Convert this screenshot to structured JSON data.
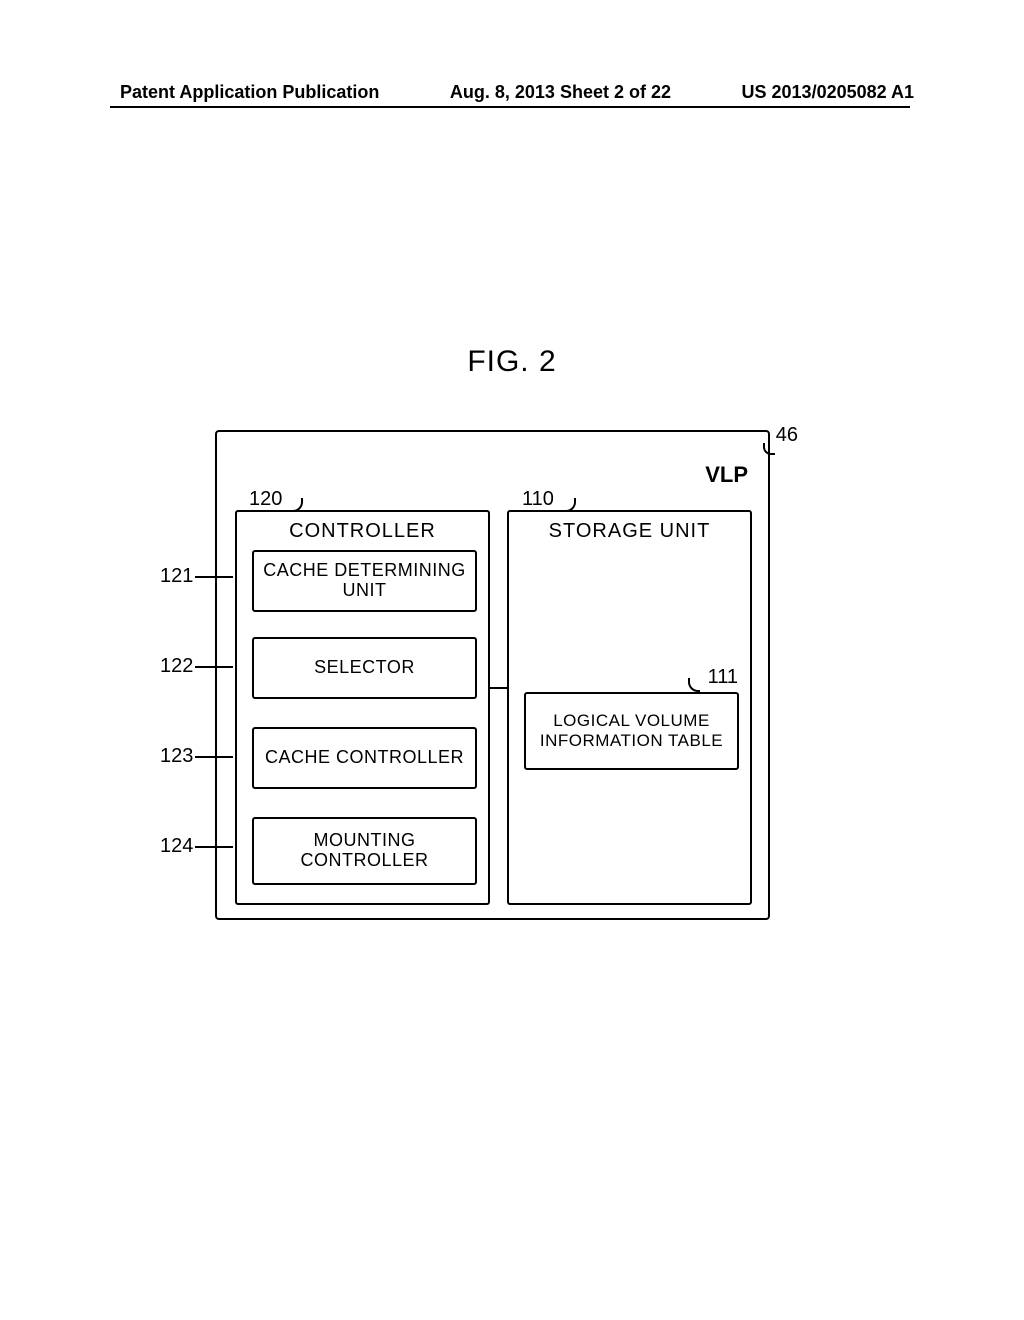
{
  "header": {
    "left": "Patent Application Publication",
    "center": "Aug. 8, 2013  Sheet 2 of 22",
    "right": "US 2013/0205082 A1"
  },
  "figure": {
    "title": "FIG. 2",
    "outer_ref": "46",
    "outer_label": "VLP",
    "controller": {
      "ref": "120",
      "title": "CONTROLLER",
      "items": [
        {
          "ref": "121",
          "label": "CACHE DETERMINING\nUNIT"
        },
        {
          "ref": "122",
          "label": "SELECTOR"
        },
        {
          "ref": "123",
          "label": "CACHE CONTROLLER"
        },
        {
          "ref": "124",
          "label": "MOUNTING\nCONTROLLER"
        }
      ]
    },
    "storage": {
      "ref": "110",
      "title": "STORAGE UNIT",
      "table": {
        "ref": "111",
        "label": "LOGICAL VOLUME\nINFORMATION TABLE"
      }
    }
  },
  "layout": {
    "sub_box_tops": [
      38,
      125,
      215,
      305
    ],
    "sub_box_heights": [
      62,
      62,
      62,
      68
    ],
    "ref_left_tops": [
      155,
      245,
      335,
      425
    ],
    "lead_left_tops": [
      166,
      256,
      346,
      436
    ]
  }
}
